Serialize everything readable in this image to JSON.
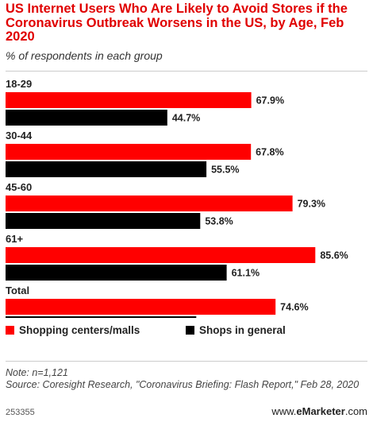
{
  "chart_data": {
    "type": "bar",
    "orientation": "horizontal",
    "title": "US Internet Users Who Are Likely to Avoid Stores if the Coronavirus Outbreak Worsens in the US, by Age, Feb 2020",
    "subtitle": "% of respondents in each group",
    "categories": [
      "18-29",
      "30-44",
      "45-60",
      "61+",
      "Total"
    ],
    "series": [
      {
        "name": "Shopping centers/malls",
        "color": "#ff0000",
        "values": [
          67.9,
          67.8,
          79.3,
          85.6,
          74.6
        ]
      },
      {
        "name": "Shops in general",
        "color": "#000000",
        "values": [
          44.7,
          55.5,
          53.8,
          61.1,
          52.7
        ]
      }
    ],
    "value_suffix": "%",
    "xlim": [
      0,
      100
    ],
    "grid": false,
    "legend_position": "bottom"
  },
  "note": "Note: n=1,121",
  "source": "Source: Coresight Research, \"Coronavirus Briefing: Flash Report,\" Feb 28, 2020",
  "footer": {
    "id": "253355",
    "brand_prefix": "www.",
    "brand_name": "eMarketer",
    "brand_suffix": ".com"
  }
}
